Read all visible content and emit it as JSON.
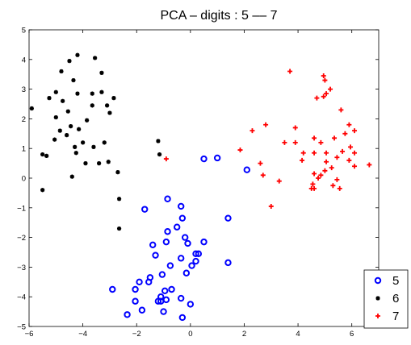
{
  "chart_data": {
    "type": "scatter",
    "title": "PCA – digits : 5 –– 7",
    "xlim": [
      -6,
      7
    ],
    "ylim": [
      -5,
      5
    ],
    "xticks": [
      -6,
      -4,
      -2,
      0,
      2,
      4,
      6
    ],
    "yticks": [
      -5,
      -4,
      -3,
      -2,
      -1,
      0,
      1,
      2,
      3,
      4,
      5
    ],
    "tick_labels_x": [
      "−6",
      "−4",
      "−2",
      "0",
      "2",
      "4",
      "6"
    ],
    "tick_labels_y": [
      "−5",
      "−4",
      "−3",
      "−2",
      "−1",
      "0",
      "1",
      "2",
      "3",
      "4",
      "5"
    ],
    "grid": false,
    "legend_position": "bottom-right",
    "series": [
      {
        "name": "5",
        "marker": "circle",
        "color": "#0000ff",
        "points": [
          [
            0.5,
            0.65
          ],
          [
            1.0,
            0.68
          ],
          [
            2.1,
            0.28
          ],
          [
            -1.7,
            -1.05
          ],
          [
            -0.85,
            -0.7
          ],
          [
            -0.35,
            -0.95
          ],
          [
            -0.3,
            -1.35
          ],
          [
            1.4,
            -1.35
          ],
          [
            -0.5,
            -1.65
          ],
          [
            -0.85,
            -1.8
          ],
          [
            -0.2,
            -2.0
          ],
          [
            -0.1,
            -2.2
          ],
          [
            0.5,
            -2.15
          ],
          [
            -1.4,
            -2.25
          ],
          [
            -0.9,
            -2.15
          ],
          [
            0.2,
            -2.55
          ],
          [
            0.3,
            -2.55
          ],
          [
            -1.3,
            -2.6
          ],
          [
            -0.75,
            -2.95
          ],
          [
            0.05,
            -2.95
          ],
          [
            0.2,
            -2.8
          ],
          [
            -0.35,
            -2.7
          ],
          [
            1.4,
            -2.85
          ],
          [
            -0.15,
            -3.2
          ],
          [
            -1.05,
            -3.25
          ],
          [
            -1.5,
            -3.35
          ],
          [
            -1.55,
            -3.5
          ],
          [
            -1.9,
            -3.5
          ],
          [
            -2.05,
            -3.75
          ],
          [
            -2.9,
            -3.75
          ],
          [
            -0.95,
            -3.8
          ],
          [
            -0.7,
            -3.75
          ],
          [
            -1.1,
            -4.0
          ],
          [
            -1.1,
            -4.15
          ],
          [
            -1.2,
            -4.15
          ],
          [
            -2.05,
            -4.15
          ],
          [
            -0.9,
            -4.1
          ],
          [
            -0.35,
            -4.05
          ],
          [
            0.0,
            -4.25
          ],
          [
            -1.0,
            -4.5
          ],
          [
            -1.8,
            -4.45
          ],
          [
            -2.35,
            -4.6
          ],
          [
            -0.3,
            -4.7
          ]
        ]
      },
      {
        "name": "6",
        "marker": "asterisk",
        "color": "#000000",
        "points": [
          [
            -4.5,
            3.95
          ],
          [
            -4.2,
            4.15
          ],
          [
            -3.55,
            4.05
          ],
          [
            -4.8,
            3.6
          ],
          [
            -3.3,
            3.55
          ],
          [
            -4.35,
            3.3
          ],
          [
            -5.0,
            2.9
          ],
          [
            -4.2,
            2.85
          ],
          [
            -3.65,
            2.85
          ],
          [
            -3.3,
            2.9
          ],
          [
            -5.25,
            2.7
          ],
          [
            -4.75,
            2.6
          ],
          [
            -2.85,
            2.7
          ],
          [
            -3.65,
            2.45
          ],
          [
            -3.1,
            2.45
          ],
          [
            -5.9,
            2.35
          ],
          [
            -3.0,
            2.2
          ],
          [
            -4.55,
            2.25
          ],
          [
            -5.0,
            2.05
          ],
          [
            -4.85,
            1.6
          ],
          [
            -4.45,
            1.75
          ],
          [
            -4.15,
            1.65
          ],
          [
            -3.85,
            1.95
          ],
          [
            -4.6,
            1.45
          ],
          [
            -5.05,
            1.3
          ],
          [
            -4.0,
            1.2
          ],
          [
            -3.2,
            1.2
          ],
          [
            -4.3,
            1.05
          ],
          [
            -3.6,
            1.05
          ],
          [
            -5.5,
            0.8
          ],
          [
            -5.35,
            0.75
          ],
          [
            -4.25,
            0.85
          ],
          [
            -3.9,
            0.5
          ],
          [
            -3.4,
            0.5
          ],
          [
            -3.05,
            0.55
          ],
          [
            -2.7,
            0.2
          ],
          [
            -4.4,
            0.05
          ],
          [
            -1.2,
            1.25
          ],
          [
            -1.15,
            0.8
          ],
          [
            -5.5,
            -0.4
          ],
          [
            -2.65,
            -0.7
          ],
          [
            -2.65,
            -1.7
          ]
        ]
      },
      {
        "name": "7",
        "marker": "plus",
        "color": "#ff0000",
        "points": [
          [
            -0.9,
            0.65
          ],
          [
            3.7,
            3.6
          ],
          [
            4.95,
            3.45
          ],
          [
            5.0,
            3.3
          ],
          [
            5.2,
            3.0
          ],
          [
            5.05,
            2.85
          ],
          [
            4.95,
            2.75
          ],
          [
            4.7,
            2.7
          ],
          [
            2.3,
            1.6
          ],
          [
            2.8,
            1.8
          ],
          [
            3.9,
            1.7
          ],
          [
            5.6,
            2.3
          ],
          [
            5.9,
            1.8
          ],
          [
            3.5,
            1.2
          ],
          [
            3.9,
            1.2
          ],
          [
            4.6,
            1.35
          ],
          [
            4.85,
            1.2
          ],
          [
            5.35,
            1.35
          ],
          [
            5.75,
            1.5
          ],
          [
            6.1,
            1.6
          ],
          [
            1.85,
            0.95
          ],
          [
            2.6,
            0.5
          ],
          [
            5.95,
            1.05
          ],
          [
            5.65,
            0.9
          ],
          [
            4.2,
            0.85
          ],
          [
            4.6,
            0.85
          ],
          [
            5.05,
            0.85
          ],
          [
            5.45,
            0.7
          ],
          [
            4.15,
            0.6
          ],
          [
            5.05,
            0.55
          ],
          [
            5.9,
            0.6
          ],
          [
            6.1,
            0.85
          ],
          [
            6.65,
            0.45
          ],
          [
            6.1,
            0.4
          ],
          [
            5.25,
            0.35
          ],
          [
            5.0,
            0.25
          ],
          [
            4.85,
            0.1
          ],
          [
            4.6,
            0.15
          ],
          [
            2.7,
            0.1
          ],
          [
            3.3,
            -0.1
          ],
          [
            4.75,
            0.0
          ],
          [
            5.45,
            -0.05
          ],
          [
            4.55,
            -0.2
          ],
          [
            4.5,
            -0.35
          ],
          [
            4.6,
            -0.35
          ],
          [
            5.3,
            -0.25
          ],
          [
            5.55,
            -0.35
          ],
          [
            3.0,
            -0.95
          ]
        ]
      }
    ]
  }
}
